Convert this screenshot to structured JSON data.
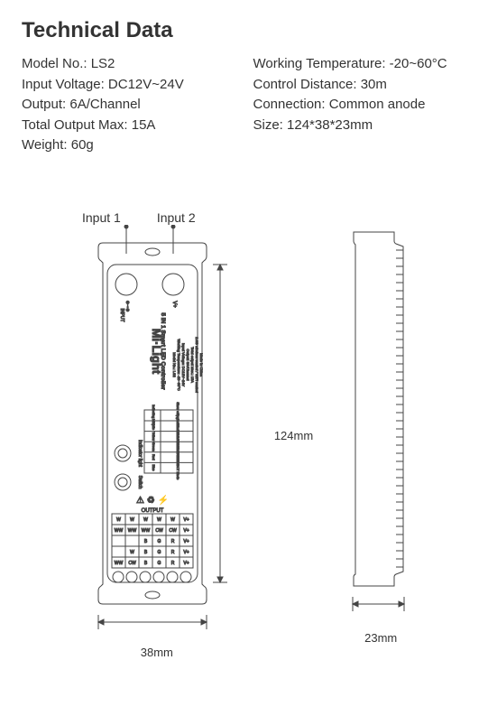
{
  "title": "Technical Data",
  "left_specs": [
    {
      "label": "Model No.",
      "value": "LS2"
    },
    {
      "label": "Input Voltage",
      "value": "DC12V~24V"
    },
    {
      "label": "Output",
      "value": "6A/Channel"
    },
    {
      "label": "Total Output Max",
      "value": "15A"
    },
    {
      "label": "Weight",
      "value": "60g"
    }
  ],
  "right_specs": [
    {
      "label": "Working Temperature",
      "value": "-20~60°C"
    },
    {
      "label": "Control Distance",
      "value": "30m"
    },
    {
      "label": "Connection",
      "value": "Common anode"
    },
    {
      "label": "Size",
      "value": "124*38*23mm"
    }
  ],
  "diagram": {
    "input1_label": "Input 1",
    "input2_label": "Input 2",
    "dim_front_w": "38mm",
    "dim_height": "124mm",
    "dim_side_w": "23mm",
    "brand": "Mi·Light",
    "product": "5 IN 1 Smart LED Controller",
    "model_line": "Model No.: LS2",
    "spec_lines": [
      "Working Temperature: -20~60°C",
      "Input Voltage: DC12V~24V",
      "Output: 6A/Channel",
      "Total output Max.: 15A",
      "2.4G wireless control / WiFi control",
      "Made in China"
    ],
    "table_header": [
      "Indicating lamp",
      "Show output mode"
    ],
    "table_rows": [
      [
        "White",
        "Single Color Mode"
      ],
      [
        "Yellow",
        "Dual White Mode"
      ],
      [
        "Green",
        "RGB Mode"
      ],
      [
        "Red",
        "RGBW Mode"
      ],
      [
        "Blue",
        "RGB+CCT Mode"
      ]
    ],
    "indicator_label": "Indicator light",
    "switch_label": "Switch",
    "input_text": "INPUT",
    "output_text": "OUTPUT",
    "output_rows": [
      [
        "W",
        "W",
        "W",
        "W",
        "W",
        "V+"
      ],
      [
        "WW",
        "WW",
        "WW",
        "CW",
        "CW",
        "V+"
      ],
      [
        "",
        "",
        "B",
        "G",
        "R",
        "V+"
      ],
      [
        "",
        "W",
        "B",
        "G",
        "R",
        "V+"
      ],
      [
        "WW",
        "CW",
        "B",
        "G",
        "R",
        "V+"
      ]
    ],
    "colors": {
      "stroke": "#444444",
      "fill": "#ffffff",
      "text": "#333333"
    }
  }
}
